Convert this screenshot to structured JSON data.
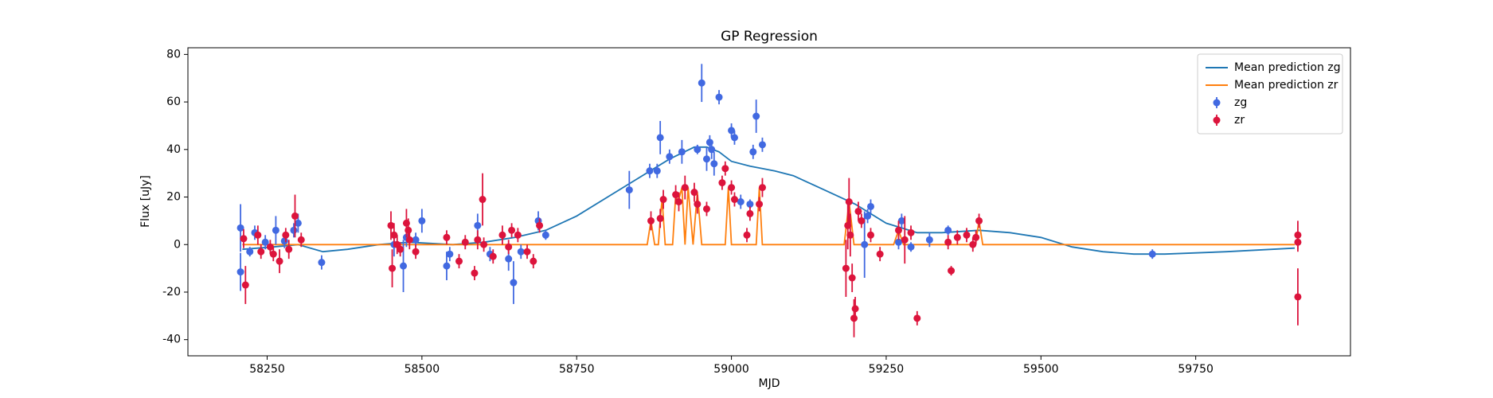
{
  "chart_data": {
    "type": "errorbar",
    "title": "GP Regression",
    "xlabel": "MJD",
    "ylabel": "Flux [uJy]",
    "xlim": [
      58122,
      60000
    ],
    "xticks": [
      58250,
      58500,
      58750,
      59000,
      59250,
      59500,
      59750
    ],
    "ylim": [
      -46.8,
      82.8
    ],
    "yticks": [
      -40,
      -20,
      0,
      20,
      40,
      60,
      80
    ],
    "legend": "upper right",
    "grid": false,
    "series": [
      {
        "name": "Mean prediction zg",
        "type": "line",
        "color": "#1f77b4",
        "x": [
          58210,
          58260,
          58300,
          58340,
          58380,
          58430,
          58480,
          58550,
          58600,
          58650,
          58700,
          58750,
          58800,
          58850,
          58900,
          58940,
          58960,
          58980,
          59000,
          59030,
          59070,
          59100,
          59150,
          59200,
          59250,
          59300,
          59340,
          59400,
          59450,
          59500,
          59550,
          59600,
          59650,
          59700,
          59800,
          59910
        ],
        "values": [
          -2,
          -1,
          0,
          -3,
          -2,
          0,
          1,
          0,
          1,
          3,
          6,
          12,
          20,
          28,
          36,
          41,
          41,
          39,
          35,
          33,
          31,
          29,
          23,
          17,
          9,
          5,
          5,
          6,
          5,
          3,
          -1,
          -3,
          -4,
          -4,
          -3,
          -1.5
        ]
      },
      {
        "name": "Mean prediction zr",
        "type": "line",
        "color": "#ff7f0e",
        "x": [
          58210,
          58864,
          58870,
          58876,
          58882,
          58885,
          58888,
          58893,
          58905,
          58910,
          58914,
          58920,
          58925,
          58930,
          58938,
          58945,
          58952,
          58990,
          58995,
          59000,
          59040,
          59045,
          59050,
          59182,
          59190,
          59198,
          59262,
          59270,
          59278,
          59394,
          59400,
          59406,
          59910
        ],
        "values": [
          0,
          0,
          10,
          0,
          0,
          11,
          19,
          0,
          0,
          21,
          18,
          24,
          0,
          24,
          0,
          22,
          0,
          0,
          24,
          0,
          0,
          24,
          0,
          0,
          18,
          0,
          0,
          6,
          0,
          0,
          10,
          0,
          0
        ]
      },
      {
        "name": "zg",
        "type": "errorbar",
        "color": "#4169e1",
        "x": [
          58207,
          58207,
          58222,
          58230,
          58247,
          58264,
          58278,
          58293,
          58300,
          58338,
          58455,
          58470,
          58475,
          58490,
          58500,
          58540,
          58545,
          58590,
          58610,
          58640,
          58648,
          58660,
          58688,
          58700,
          58835,
          58868,
          58880,
          58885,
          58900,
          58920,
          58945,
          58952,
          58960,
          58965,
          58968,
          58972,
          58980,
          59000,
          59005,
          59015,
          59030,
          59035,
          59040,
          59050,
          59215,
          59220,
          59225,
          59270,
          59275,
          59290,
          59320,
          59350,
          59680
        ],
        "values": [
          7,
          -11.5,
          -3,
          5,
          1,
          6,
          1.5,
          6,
          9,
          -7.5,
          0,
          -9,
          3,
          2,
          10,
          -9,
          -4,
          8,
          -4,
          -6,
          -16,
          -3,
          10,
          4,
          23,
          31,
          31,
          45,
          37,
          39,
          40,
          68,
          36,
          43,
          40,
          34,
          62,
          48,
          45,
          18,
          17,
          39,
          54,
          42,
          0,
          12,
          16,
          1,
          10,
          -1,
          2,
          6,
          -4
        ],
        "errors": [
          10,
          8,
          2,
          3,
          3,
          6,
          3,
          3,
          4,
          3,
          5,
          11,
          4,
          3,
          5,
          6,
          3,
          5,
          3,
          5,
          9,
          3,
          4,
          2,
          8,
          3,
          3,
          7,
          3,
          5,
          2,
          8,
          5,
          3,
          4,
          5,
          3,
          3,
          3,
          3,
          2,
          3,
          7,
          3,
          14,
          3,
          3,
          3,
          3,
          2,
          3,
          2,
          2
        ]
      },
      {
        "name": "zr",
        "type": "errorbar",
        "color": "#dc143c",
        "x": [
          58212,
          58215,
          58235,
          58240,
          58255,
          58260,
          58270,
          58280,
          58285,
          58295,
          58305,
          58450,
          58452,
          58455,
          58460,
          58465,
          58475,
          58478,
          58480,
          58490,
          58540,
          58560,
          58570,
          58585,
          58590,
          58598,
          58600,
          58615,
          58630,
          58640,
          58645,
          58655,
          58670,
          58680,
          58690,
          58870,
          58885,
          58890,
          58910,
          58915,
          58925,
          58940,
          58945,
          58960,
          58985,
          58990,
          59000,
          59005,
          59025,
          59030,
          59045,
          59050,
          59185,
          59188,
          59190,
          59192,
          59195,
          59198,
          59200,
          59205,
          59210,
          59225,
          59240,
          59270,
          59280,
          59290,
          59300,
          59350,
          59355,
          59365,
          59380,
          59390,
          59395,
          59400,
          59915,
          59915,
          59915
        ],
        "values": [
          2.5,
          -17,
          4,
          -3,
          -1,
          -4,
          -7,
          4,
          -2,
          12,
          2,
          8,
          -10,
          4,
          0,
          -2,
          9,
          6,
          2,
          -3,
          3,
          -7,
          1,
          -12,
          2,
          19,
          0,
          -5,
          4,
          -1,
          6,
          4,
          -3,
          -7,
          8,
          10,
          11,
          19,
          21,
          18,
          24,
          22,
          17,
          15,
          26,
          32,
          24,
          19,
          4,
          13,
          17,
          24,
          -10,
          8,
          18,
          4,
          -14,
          -31,
          -27,
          14,
          10,
          4,
          -4,
          6,
          2,
          5,
          -31,
          1,
          -11,
          3,
          4,
          0,
          3,
          10,
          4,
          1,
          -22
        ],
        "errors": [
          4,
          8,
          4,
          3,
          3,
          3,
          5,
          3,
          4,
          9,
          3,
          6,
          8,
          5,
          4,
          3,
          6,
          5,
          4,
          3,
          3,
          3,
          3,
          3,
          4,
          11,
          3,
          3,
          4,
          3,
          3,
          3,
          3,
          3,
          3,
          4,
          4,
          4,
          4,
          4,
          5,
          4,
          4,
          3,
          3,
          3,
          3,
          3,
          3,
          3,
          3,
          4,
          12,
          10,
          10,
          9,
          6,
          8,
          5,
          4,
          3,
          3,
          3,
          4,
          10,
          3,
          3,
          3,
          2,
          3,
          3,
          3,
          3,
          3,
          6,
          4,
          12
        ]
      }
    ]
  }
}
